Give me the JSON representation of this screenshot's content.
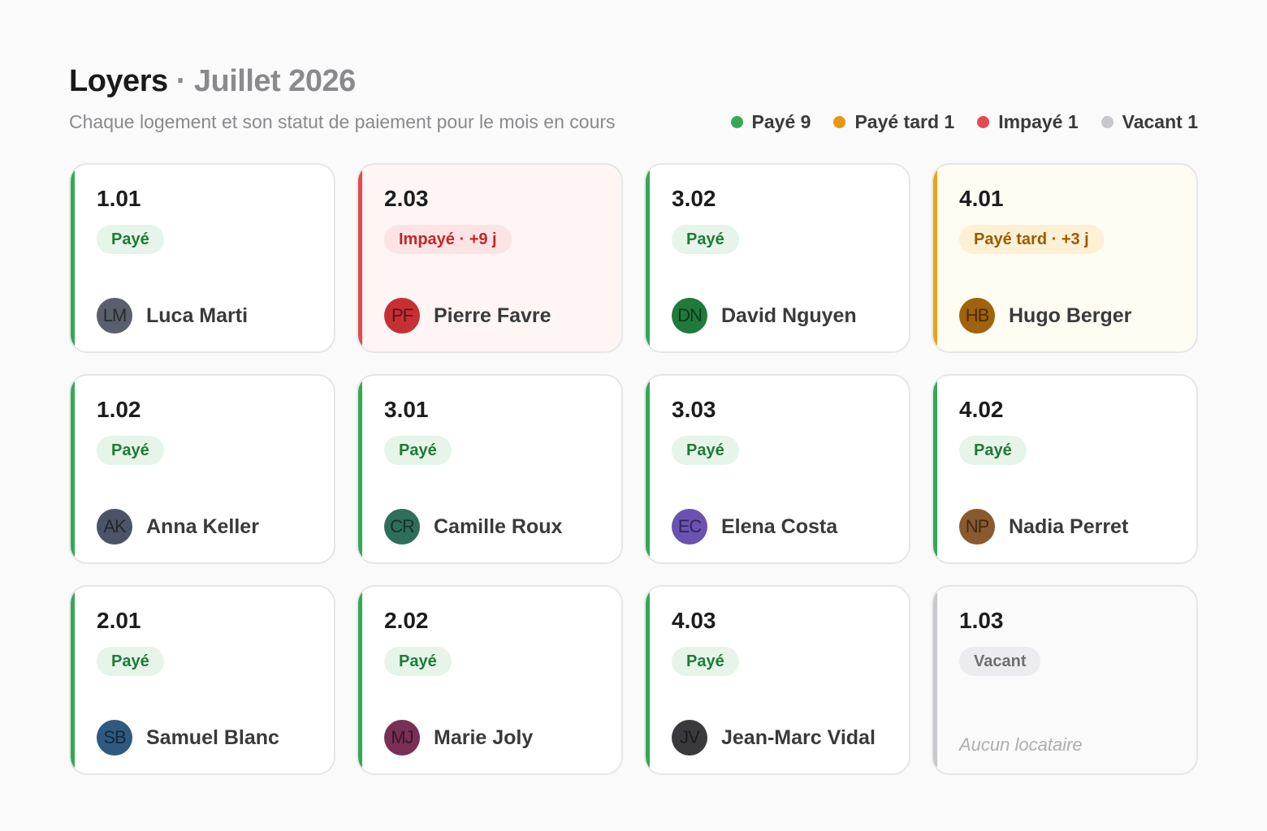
{
  "header": {
    "title": "Loyers",
    "separator": "·",
    "period": "Juillet 2026",
    "subtitle": "Chaque logement et son statut de paiement pour le mois en cours"
  },
  "legend": [
    {
      "label": "Payé",
      "count": "9",
      "color": "#34a853"
    },
    {
      "label": "Payé tard",
      "count": "1",
      "color": "#e8960c"
    },
    {
      "label": "Impayé",
      "count": "1",
      "color": "#e5484d"
    },
    {
      "label": "Vacant",
      "count": "1",
      "color": "#c7c7cc"
    }
  ],
  "status_styles": {
    "paid": {
      "accent": "#34a853",
      "badge_bg": "#e6f4ea",
      "badge_fg": "#1e7b34"
    },
    "unpaid": {
      "accent": "#e5484d",
      "badge_bg": "#fde4e4",
      "badge_fg": "#c4262b"
    },
    "late": {
      "accent": "#e8a317",
      "badge_bg": "#fdf0d5",
      "badge_fg": "#9a5b00"
    },
    "vacant": {
      "accent": "#c7c7cc",
      "badge_bg": "#ececf0",
      "badge_fg": "#6e6e73"
    }
  },
  "units": [
    {
      "unit": "1.01",
      "status": "paid",
      "badge": "Payé",
      "initials": "LM",
      "tenant": "Luca Marti",
      "avatar_color": "#5b5f6b"
    },
    {
      "unit": "2.03",
      "status": "unpaid",
      "badge": "Impayé · +9 j",
      "initials": "PF",
      "tenant": "Pierre Favre",
      "avatar_color": "#c62f36"
    },
    {
      "unit": "3.02",
      "status": "paid",
      "badge": "Payé",
      "initials": "DN",
      "tenant": "David Nguyen",
      "avatar_color": "#1f7a3c"
    },
    {
      "unit": "4.01",
      "status": "late",
      "badge": "Payé tard · +3 j",
      "initials": "HB",
      "tenant": "Hugo Berger",
      "avatar_color": "#a0620c"
    },
    {
      "unit": "1.02",
      "status": "paid",
      "badge": "Payé",
      "initials": "AK",
      "tenant": "Anna Keller",
      "avatar_color": "#4b5466"
    },
    {
      "unit": "3.01",
      "status": "paid",
      "badge": "Payé",
      "initials": "CR",
      "tenant": "Camille Roux",
      "avatar_color": "#2f6e5a"
    },
    {
      "unit": "3.03",
      "status": "paid",
      "badge": "Payé",
      "initials": "EC",
      "tenant": "Elena Costa",
      "avatar_color": "#6b52b0"
    },
    {
      "unit": "4.02",
      "status": "paid",
      "badge": "Payé",
      "initials": "NP",
      "tenant": "Nadia Perret",
      "avatar_color": "#8a5a2e"
    },
    {
      "unit": "2.01",
      "status": "paid",
      "badge": "Payé",
      "initials": "SB",
      "tenant": "Samuel Blanc",
      "avatar_color": "#2e5a80"
    },
    {
      "unit": "2.02",
      "status": "paid",
      "badge": "Payé",
      "initials": "MJ",
      "tenant": "Marie Joly",
      "avatar_color": "#7a2f55"
    },
    {
      "unit": "4.03",
      "status": "paid",
      "badge": "Payé",
      "initials": "JV",
      "tenant": "Jean-Marc Vidal",
      "avatar_color": "#3a3a3e"
    },
    {
      "unit": "1.03",
      "status": "vacant",
      "badge": "Vacant",
      "empty_text": "Aucun locataire"
    }
  ]
}
